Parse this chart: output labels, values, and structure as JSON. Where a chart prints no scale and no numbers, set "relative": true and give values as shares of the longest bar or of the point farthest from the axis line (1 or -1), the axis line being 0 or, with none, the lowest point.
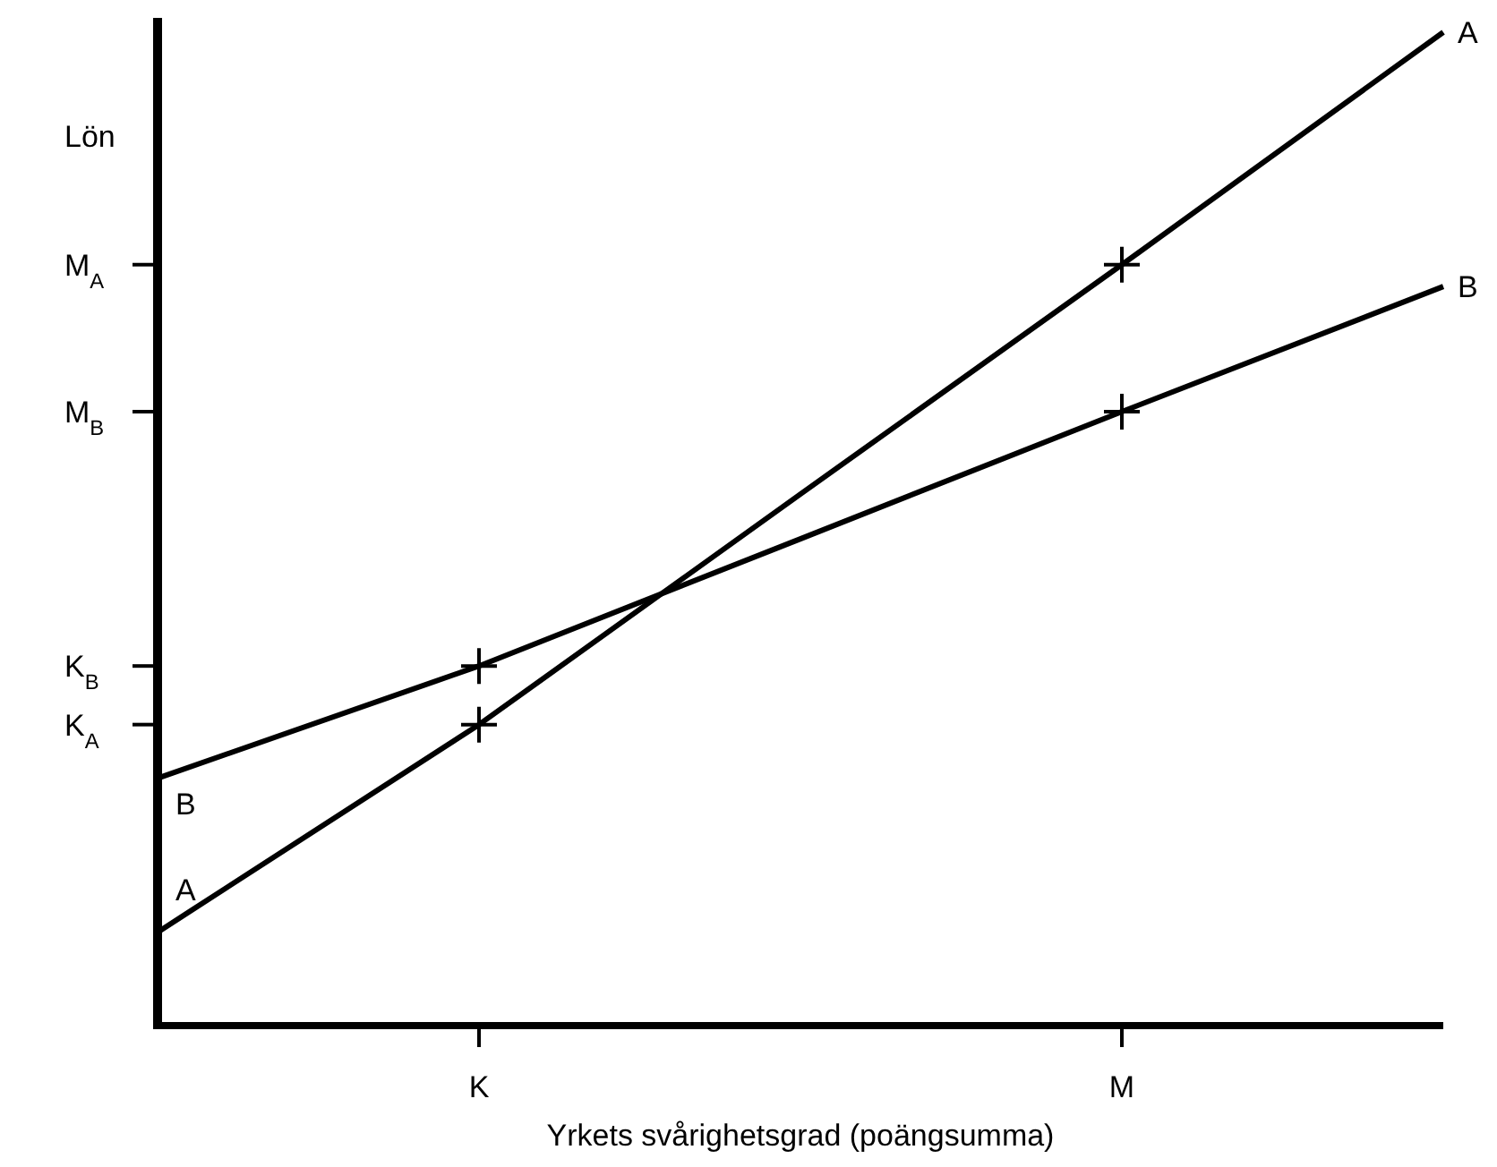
{
  "chart_data": {
    "type": "line",
    "ylabel": "Lön",
    "xlabel": "Yrkets svårighetsgrad (poängsumma)",
    "relative": true,
    "categories": [
      null,
      "K",
      null,
      "M",
      null
    ],
    "ref_lines": [
      {
        "axis": "y",
        "value": 0.766,
        "label": "M$_{A}$"
      },
      {
        "axis": "y",
        "value": 0.618,
        "label": "M$_{B}$"
      },
      {
        "axis": "y",
        "value": 0.362,
        "label": "K$_{B}$"
      },
      {
        "axis": "y",
        "value": 0.303,
        "label": "K$_{A}$"
      }
    ],
    "series": [
      {
        "name": "A",
        "color": "#000000",
        "marker": "none",
        "values": [
          0.094,
          0.303,
          0.535,
          0.766,
          1
        ]
      },
      {
        "name": "B",
        "color": "#000000",
        "marker": "none",
        "values": [
          0.249,
          0.362,
          0.49,
          0.618,
          0.744
        ]
      },
      {
        "type": "scatter",
        "color": "#000000",
        "marker": "cross",
        "x": [
          "K",
          "M"
        ],
        "values": [
          0.303,
          0.766
        ]
      },
      {
        "type": "scatter",
        "color": "#000000",
        "marker": "cross",
        "x": [
          "K",
          "M"
        ],
        "values": [
          0.362,
          0.618
        ]
      }
    ]
  }
}
